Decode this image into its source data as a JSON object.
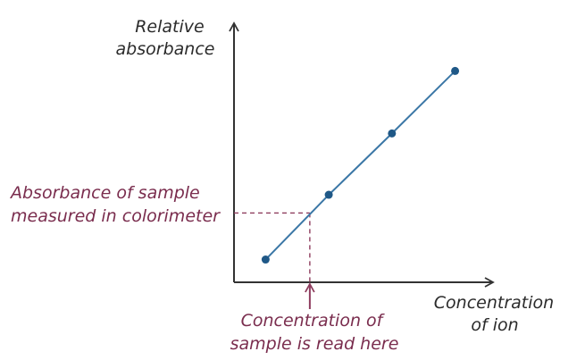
{
  "chart_data": {
    "type": "line",
    "ylabel_lines": [
      "Relative",
      "absorbance"
    ],
    "xlabel_lines": [
      "Concentration",
      "of ion"
    ],
    "series": [
      {
        "x": [
          1.0,
          3.0,
          5.0,
          7.0
        ],
        "y": [
          1.0,
          3.85,
          6.55,
          9.3
        ]
      }
    ],
    "sample": {
      "x": 2.4,
      "y": 3.05
    },
    "xlim": [
      0,
      8.2
    ],
    "ylim": [
      0,
      11.4
    ],
    "annotations": {
      "absorbance_lines": [
        "Absorbance of sample",
        "measured in colorimeter"
      ],
      "concentration_lines": [
        "Concentration of",
        "sample is read here"
      ]
    },
    "grid": false,
    "colors": {
      "line": "#3b77a6",
      "point": "#1f5887",
      "axis": "#333333",
      "annotation": "#7a2d4e",
      "guide": "#8e3d5e"
    }
  }
}
